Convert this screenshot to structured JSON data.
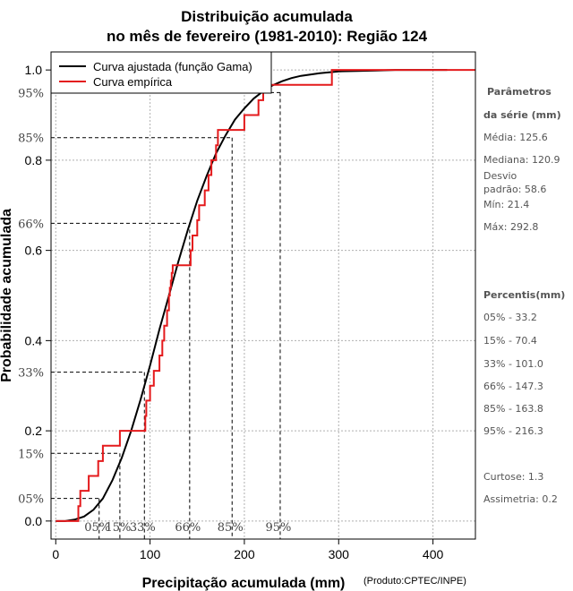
{
  "title_line1": "Distribuição acumulada",
  "title_line2": "no mês de fevereiro (1981-2010): Região 124",
  "credit": "(Produto:CPTEC/INPE)",
  "colors": {
    "fitted": "#000000",
    "empirical": "#e41a1c",
    "grid": "#b0b0b0",
    "marker": "#000000"
  },
  "stats": {
    "heading1": "Parâmetros",
    "heading2": "da série (mm)",
    "lines": [
      "Média: 125.6",
      "Mediana: 120.9",
      "Desvio",
      "padrão: 58.6",
      "Mín: 21.4",
      "Máx: 292.8"
    ],
    "percentis_heading": "Percentis(mm)",
    "percentis": [
      "05% - 33.2",
      "15% - 70.4",
      "33% - 101.0",
      "66% - 147.3",
      "85% - 163.8",
      "95% - 216.3"
    ],
    "curtose": "Curtose: 1.3",
    "assimetria": "Assimetria: 0.2"
  },
  "chart_data": {
    "type": "line",
    "title": "Distribuição acumulada no mês de fevereiro (1981-2010): Região 124",
    "xlabel": "Precipitação acumulada (mm)",
    "ylabel": "Probabilidade acumulada",
    "xlim": [
      -5,
      445
    ],
    "ylim": [
      -0.04,
      1.04
    ],
    "x_ticks": [
      0,
      100,
      200,
      300,
      400
    ],
    "y_ticks": [
      0.0,
      0.2,
      0.4,
      0.6,
      0.8,
      1.0
    ],
    "y_tick_labels": [
      "0.0",
      "0.2",
      "0.4",
      "0.6",
      "0.8",
      "1.0"
    ],
    "grid": true,
    "legend_position": "top-left",
    "series": [
      {
        "name": "Curva ajustada (função Gama)",
        "style": "line",
        "x": [
          0,
          10,
          20,
          30,
          40,
          50,
          60,
          70,
          80,
          90,
          100,
          110,
          120,
          130,
          140,
          150,
          160,
          170,
          180,
          190,
          200,
          210,
          220,
          230,
          240,
          250,
          260,
          280,
          300,
          320,
          340,
          360,
          380,
          400,
          415
        ],
        "y": [
          0.0,
          0.0,
          0.003,
          0.01,
          0.025,
          0.05,
          0.09,
          0.14,
          0.2,
          0.27,
          0.345,
          0.425,
          0.5,
          0.575,
          0.645,
          0.71,
          0.765,
          0.815,
          0.855,
          0.89,
          0.915,
          0.937,
          0.953,
          0.966,
          0.975,
          0.982,
          0.987,
          0.993,
          0.997,
          0.998,
          0.999,
          1.0,
          1.0,
          1.0,
          1.0
        ]
      },
      {
        "name": "Curva empírica",
        "style": "step",
        "x": [
          0,
          21.4,
          24.0,
          26.0,
          35.0,
          45.0,
          50.0,
          65.0,
          68.0,
          72.0,
          95.0,
          96.0,
          100.0,
          104.0,
          110.0,
          113.0,
          115.0,
          118.0,
          120.0,
          121.0,
          122.0,
          123.0,
          124.0,
          125.0,
          126.0,
          130.0,
          143.0,
          145.0,
          150.0,
          152.0,
          158.0,
          162.0,
          165.0,
          170.0,
          172.0,
          180.0,
          185.0,
          200.0,
          215.0,
          220.0,
          226.0,
          232.0,
          292.8,
          445
        ],
        "y": [
          0.0,
          0.0,
          0.033,
          0.067,
          0.1,
          0.133,
          0.167,
          0.167,
          0.2,
          0.2,
          0.233,
          0.267,
          0.3,
          0.333,
          0.367,
          0.4,
          0.433,
          0.467,
          0.5,
          0.517,
          0.533,
          0.55,
          0.567,
          0.567,
          0.567,
          0.567,
          0.6,
          0.633,
          0.667,
          0.7,
          0.733,
          0.767,
          0.8,
          0.833,
          0.867,
          0.867,
          0.867,
          0.9,
          0.933,
          0.95,
          0.967,
          0.967,
          1.0,
          1.0
        ]
      }
    ],
    "percentile_markers": [
      {
        "label": "05%",
        "p": 0.05,
        "x": 46.0
      },
      {
        "label": "15%",
        "p": 0.15,
        "x": 68.0
      },
      {
        "label": "33%",
        "p": 0.33,
        "x": 94.0
      },
      {
        "label": "66%",
        "p": 0.66,
        "x": 142.0
      },
      {
        "label": "85%",
        "p": 0.85,
        "x": 187.0
      },
      {
        "label": "95%",
        "p": 0.95,
        "x": 238.0
      }
    ]
  }
}
